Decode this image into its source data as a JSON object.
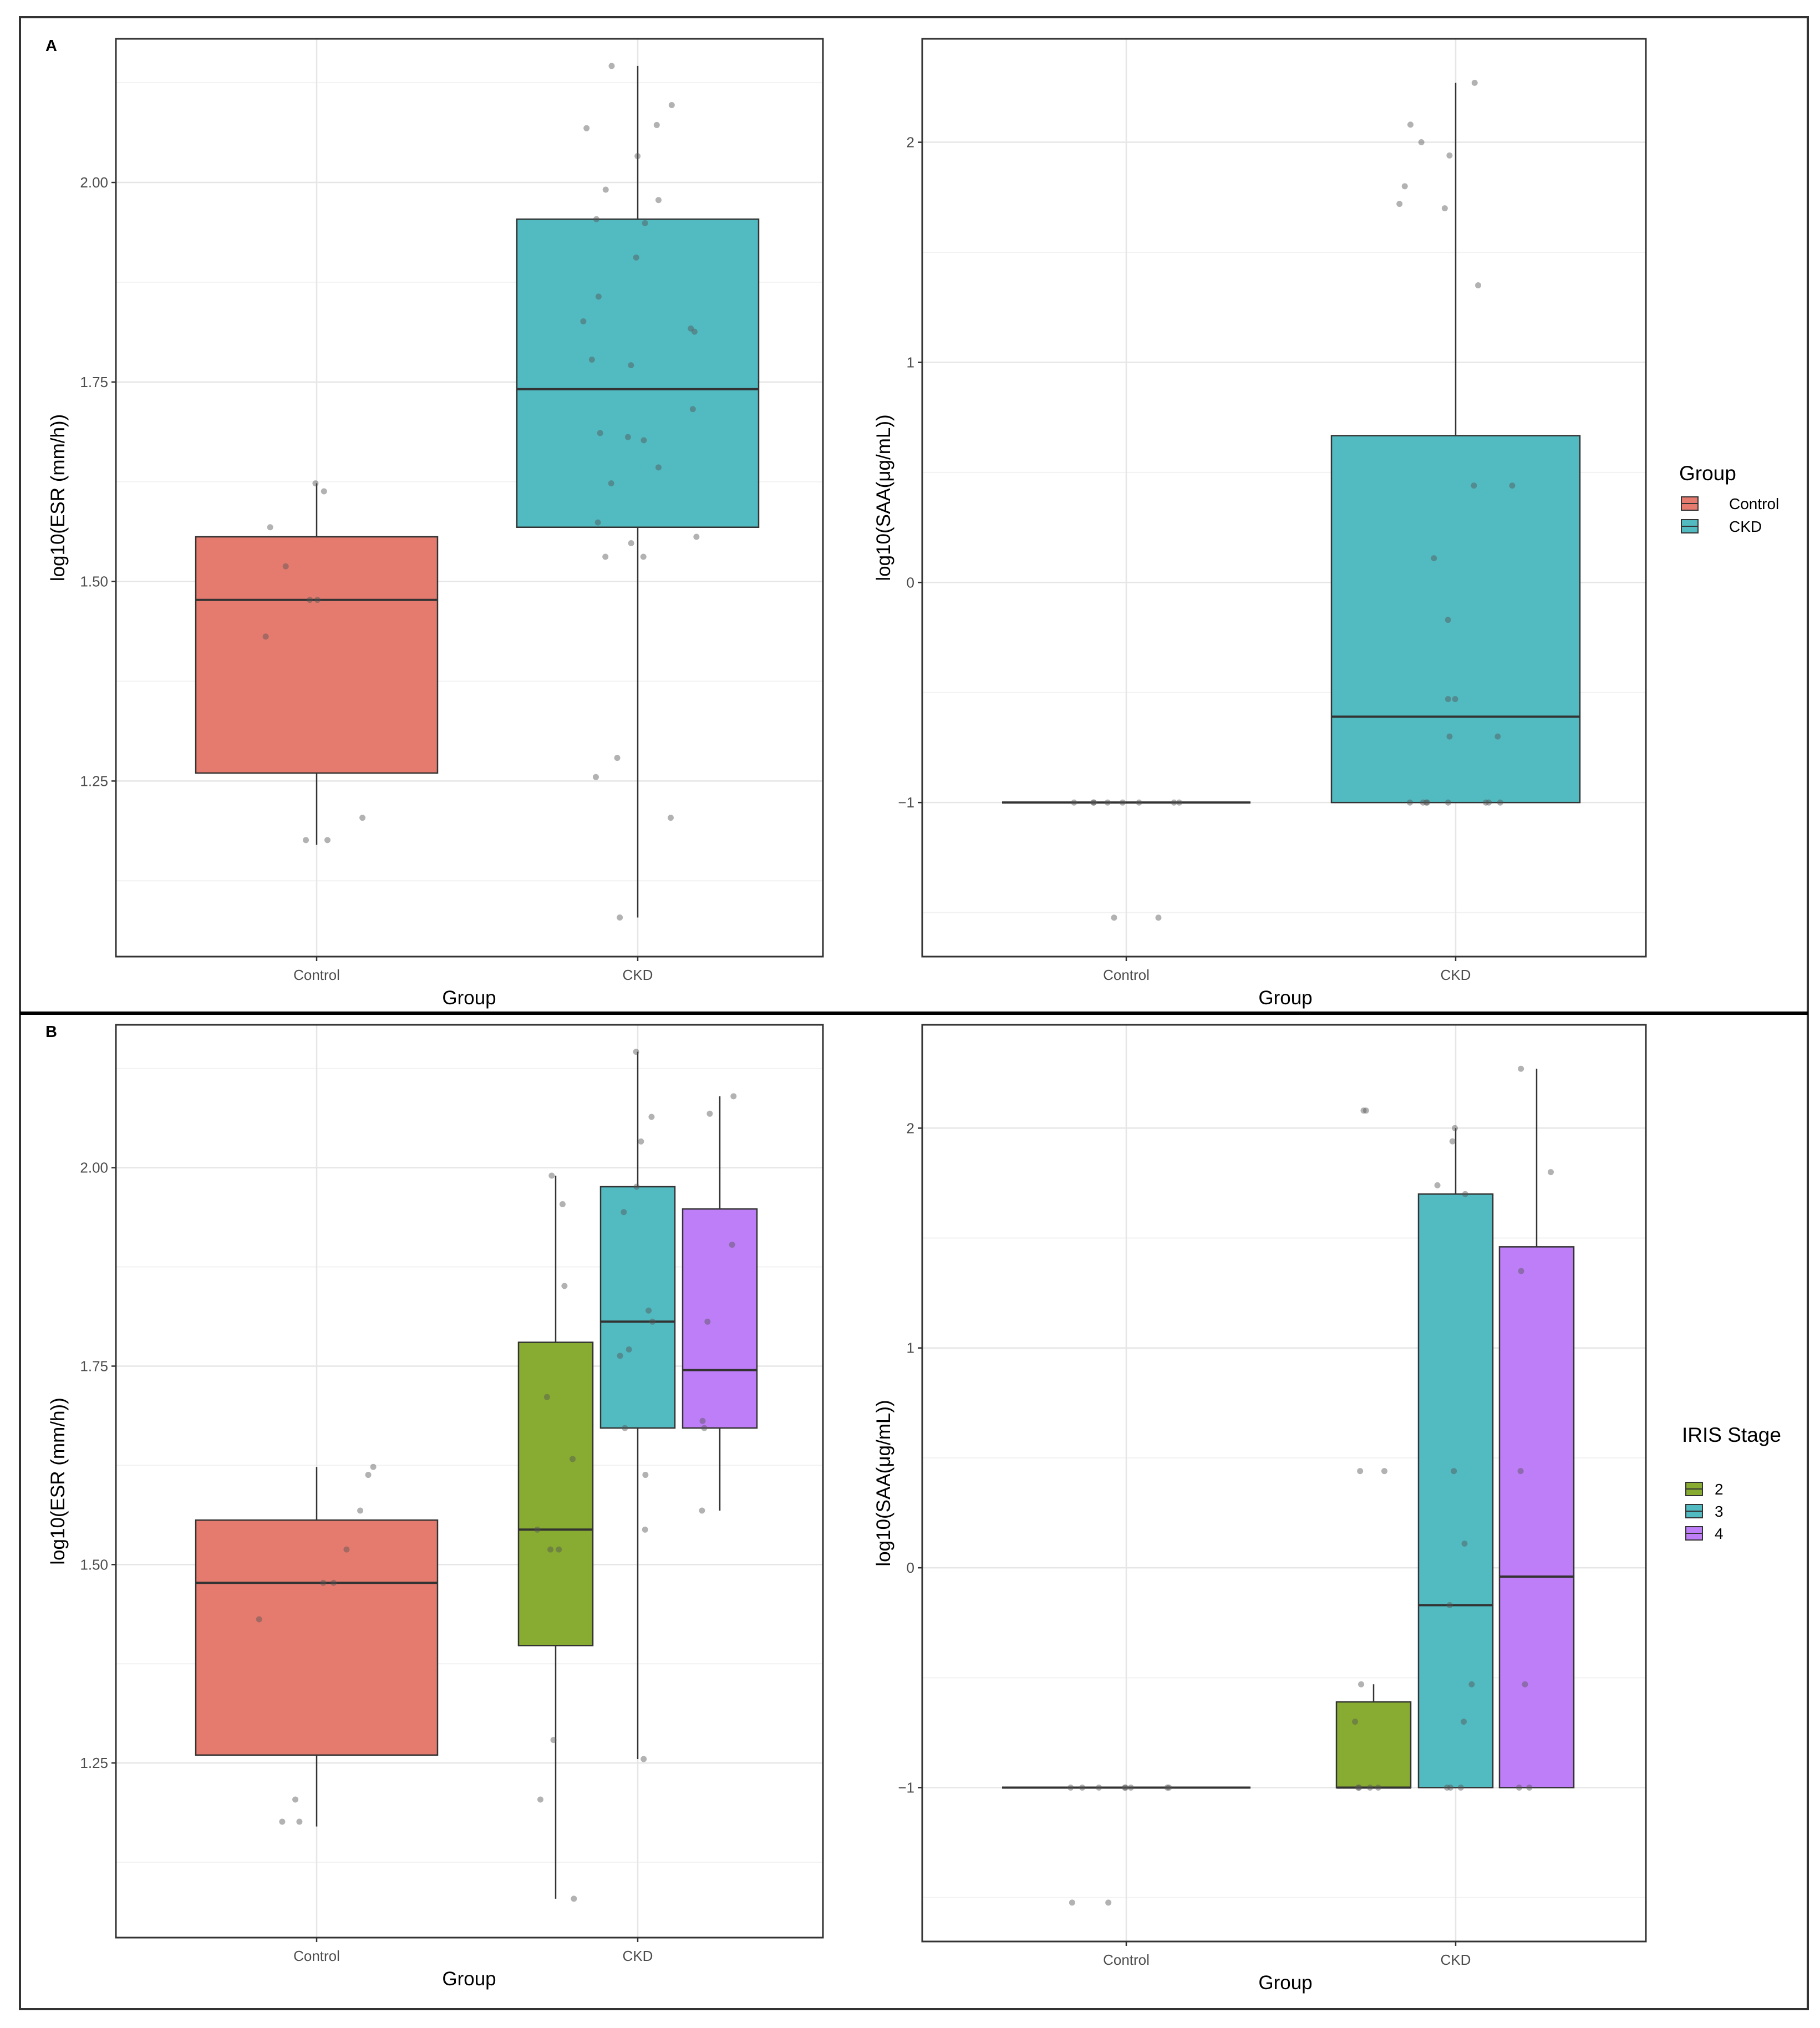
{
  "figure": {
    "panel_labels": [
      "A",
      "B"
    ],
    "legend_A": {
      "title": "Group",
      "items": [
        {
          "label": "Control",
          "color": "#E57B6F"
        },
        {
          "label": "CKD",
          "color": "#52BBC1"
        }
      ]
    },
    "legend_B": {
      "title": "IRIS Stage",
      "items": [
        {
          "label": "2",
          "color": "#88AB32"
        },
        {
          "label": "3",
          "color": "#52BBC1"
        },
        {
          "label": "4",
          "color": "#BE7EF7"
        }
      ]
    }
  },
  "chart_data": [
    {
      "id": "A-left",
      "type": "boxplot",
      "xlabel": "Group",
      "ylabel": "log10(ESR (mm/h))",
      "categories": [
        "Control",
        "CKD"
      ],
      "ylim": [
        1.03,
        2.18
      ],
      "yticks": [
        1.25,
        1.5,
        1.75,
        2.0
      ],
      "ytick_labels": [
        "1.25",
        "1.50",
        "1.75",
        "2.00"
      ],
      "boxes": [
        {
          "category": "Control",
          "group": "Control",
          "color": "#E57B6F",
          "lower_whisker": 1.17,
          "q1": 1.26,
          "median": 1.477,
          "q3": 1.556,
          "upper_whisker": 1.623
        },
        {
          "category": "CKD",
          "group": "CKD",
          "color": "#52BBC1",
          "lower_whisker": 1.079,
          "q1": 1.568,
          "median": 1.741,
          "q3": 1.954,
          "upper_whisker": 2.146
        }
      ],
      "points": [
        {
          "category": "Control",
          "values": [
            1.623,
            1.613,
            1.568,
            1.519,
            1.477,
            1.477,
            1.431,
            1.204,
            1.176,
            1.176
          ]
        },
        {
          "category": "CKD",
          "values": [
            2.146,
            2.097,
            2.072,
            2.068,
            2.033,
            1.991,
            1.978,
            1.954,
            1.949,
            1.906,
            1.857,
            1.826,
            1.817,
            1.813,
            1.778,
            1.771,
            1.716,
            1.686,
            1.681,
            1.677,
            1.643,
            1.623,
            1.574,
            1.556,
            1.548,
            1.531,
            1.531,
            1.279,
            1.255,
            1.204,
            1.079
          ]
        }
      ]
    },
    {
      "id": "A-right",
      "type": "boxplot",
      "xlabel": "Group",
      "ylabel": "log10(SAA(μg/mL))",
      "categories": [
        "Control",
        "CKD"
      ],
      "ylim": [
        -1.7,
        2.47
      ],
      "yticks": [
        -1,
        0,
        1,
        2
      ],
      "ytick_labels": [
        "−1",
        "0",
        "1",
        "2"
      ],
      "boxes": [
        {
          "category": "Control",
          "group": "Control",
          "color": "#E57B6F",
          "lower_whisker": -1.0,
          "q1": -1.0,
          "median": -1.0,
          "q3": -1.0,
          "upper_whisker": -1.0
        },
        {
          "category": "CKD",
          "group": "CKD",
          "color": "#52BBC1",
          "lower_whisker": -1.0,
          "q1": -1.0,
          "median": -0.61,
          "q3": 0.667,
          "upper_whisker": 2.27
        }
      ],
      "points": [
        {
          "category": "Control",
          "values": [
            -1.0,
            -1.0,
            -1.0,
            -1.0,
            -1.0,
            -1.0,
            -1.0,
            -1.0,
            -1.523,
            -1.523
          ]
        },
        {
          "category": "CKD",
          "values": [
            2.27,
            2.08,
            2.0,
            1.94,
            1.8,
            1.72,
            1.7,
            1.35,
            0.44,
            0.44,
            0.11,
            -0.17,
            -0.53,
            -0.53,
            -0.7,
            -0.7,
            -1.0,
            -1.0,
            -1.0,
            -1.0,
            -1.0,
            -1.0,
            -1.0,
            -1.0
          ]
        }
      ]
    },
    {
      "id": "B-left",
      "type": "boxplot",
      "xlabel": "Group",
      "ylabel": "log10(ESR (mm/h))",
      "categories": [
        "Control",
        "CKD"
      ],
      "ylim": [
        1.03,
        2.18
      ],
      "yticks": [
        1.25,
        1.5,
        1.75,
        2.0
      ],
      "ytick_labels": [
        "1.25",
        "1.50",
        "1.75",
        "2.00"
      ],
      "boxes": [
        {
          "category": "Control",
          "group": "Control",
          "color": "#E57B6F",
          "lower_whisker": 1.17,
          "q1": 1.26,
          "median": 1.477,
          "q3": 1.556,
          "upper_whisker": 1.623
        },
        {
          "category": "CKD",
          "group": "2",
          "color": "#88AB32",
          "lower_whisker": 1.079,
          "q1": 1.398,
          "median": 1.544,
          "q3": 1.78,
          "upper_whisker": 1.99
        },
        {
          "category": "CKD",
          "group": "3",
          "color": "#52BBC1",
          "lower_whisker": 1.255,
          "q1": 1.672,
          "median": 1.806,
          "q3": 1.976,
          "upper_whisker": 2.146
        },
        {
          "category": "CKD",
          "group": "4",
          "color": "#BE7EF7",
          "lower_whisker": 1.568,
          "q1": 1.672,
          "median": 1.745,
          "q3": 1.948,
          "upper_whisker": 2.09
        }
      ],
      "points": [
        {
          "category": "Control",
          "group": "Control",
          "values": [
            1.623,
            1.613,
            1.568,
            1.519,
            1.477,
            1.477,
            1.431,
            1.204,
            1.176,
            1.176
          ]
        },
        {
          "category": "CKD",
          "group": "2",
          "values": [
            1.99,
            1.954,
            1.851,
            1.711,
            1.633,
            1.544,
            1.519,
            1.519,
            1.279,
            1.204,
            1.079
          ]
        },
        {
          "category": "CKD",
          "group": "3",
          "values": [
            2.146,
            2.064,
            2.033,
            1.976,
            1.944,
            1.82,
            1.806,
            1.771,
            1.763,
            1.672,
            1.613,
            1.544,
            1.255
          ]
        },
        {
          "category": "CKD",
          "group": "4",
          "values": [
            2.09,
            2.068,
            1.903,
            1.806,
            1.681,
            1.672,
            1.568
          ]
        }
      ]
    },
    {
      "id": "B-right",
      "type": "boxplot",
      "xlabel": "Group",
      "ylabel": "log10(SAA(μg/mL))",
      "categories": [
        "Control",
        "CKD"
      ],
      "ylim": [
        -1.7,
        2.47
      ],
      "yticks": [
        -1,
        0,
        1,
        2
      ],
      "ytick_labels": [
        "−1",
        "0",
        "1",
        "2"
      ],
      "boxes": [
        {
          "category": "Control",
          "group": "Control",
          "color": "#E57B6F",
          "lower_whisker": -1.0,
          "q1": -1.0,
          "median": -1.0,
          "q3": -1.0,
          "upper_whisker": -1.0
        },
        {
          "category": "CKD",
          "group": "2",
          "color": "#88AB32",
          "lower_whisker": -1.0,
          "q1": -1.0,
          "median": -1.0,
          "q3": -0.61,
          "upper_whisker": -0.53
        },
        {
          "category": "CKD",
          "group": "3",
          "color": "#52BBC1",
          "lower_whisker": -1.0,
          "q1": -1.0,
          "median": -0.17,
          "q3": 1.7,
          "upper_whisker": 2.0
        },
        {
          "category": "CKD",
          "group": "4",
          "color": "#BE7EF7",
          "lower_whisker": -1.0,
          "q1": -1.0,
          "median": -0.04,
          "q3": 1.46,
          "upper_whisker": 2.27
        }
      ],
      "points": [
        {
          "category": "Control",
          "group": "Control",
          "values": [
            -1.0,
            -1.0,
            -1.0,
            -1.0,
            -1.0,
            -1.0,
            -1.0,
            -1.0,
            -1.523,
            -1.523
          ]
        },
        {
          "category": "CKD",
          "group": "2",
          "values": [
            2.08,
            2.08,
            0.44,
            0.44,
            -0.53,
            -0.7,
            -1.0,
            -1.0,
            -1.0,
            -1.0
          ]
        },
        {
          "category": "CKD",
          "group": "3",
          "values": [
            2.0,
            1.94,
            1.74,
            1.7,
            0.44,
            0.11,
            -0.17,
            -0.53,
            -0.7,
            -1.0,
            -1.0,
            -1.0
          ]
        },
        {
          "category": "CKD",
          "group": "4",
          "values": [
            2.27,
            1.8,
            1.35,
            0.44,
            -0.53,
            -1.0,
            -1.0
          ]
        }
      ]
    }
  ]
}
